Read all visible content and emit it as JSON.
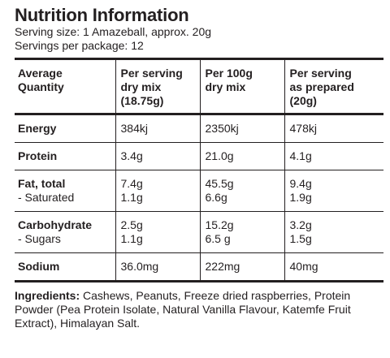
{
  "header": {
    "title": "Nutrition Information",
    "serving_size": "Serving size: 1 Amazeball, approx. 20g",
    "servings_per_package": "Servings per package: 12"
  },
  "table": {
    "columns": [
      [
        "Average",
        "Quantity",
        ""
      ],
      [
        "Per serving",
        "dry mix",
        "(18.75g)"
      ],
      [
        "Per 100g",
        "dry mix",
        ""
      ],
      [
        "Per serving",
        "as prepared",
        "(20g)"
      ]
    ],
    "rows": [
      {
        "label": "Energy",
        "sub_label": "",
        "values": [
          "384kj",
          "2350kj",
          "478kj"
        ],
        "sub_values": [
          "",
          "",
          ""
        ]
      },
      {
        "label": "Protein",
        "sub_label": "",
        "values": [
          "3.4g",
          "21.0g",
          "4.1g"
        ],
        "sub_values": [
          "",
          "",
          ""
        ]
      },
      {
        "label": "Fat, total",
        "sub_label": "- Saturated",
        "values": [
          "7.4g",
          "45.5g",
          "9.4g"
        ],
        "sub_values": [
          "1.1g",
          "6.6g",
          "1.9g"
        ]
      },
      {
        "label": "Carbohydrate",
        "sub_label": "- Sugars",
        "values": [
          "2.5g",
          "15.2g",
          "3.2g"
        ],
        "sub_values": [
          "1.1g",
          "6.5 g",
          "1.5g"
        ]
      },
      {
        "label": "Sodium",
        "sub_label": "",
        "values": [
          "36.0mg",
          "222mg",
          "40mg"
        ],
        "sub_values": [
          "",
          "",
          ""
        ]
      }
    ]
  },
  "ingredients": {
    "heading": "Ingredients:",
    "text": " Cashews, Peanuts, Freeze dried raspberries, Protein Powder (Pea Protein Isolate, Natural Vanilla Flavour, Katemfe Fruit Extract), Himalayan Salt."
  }
}
